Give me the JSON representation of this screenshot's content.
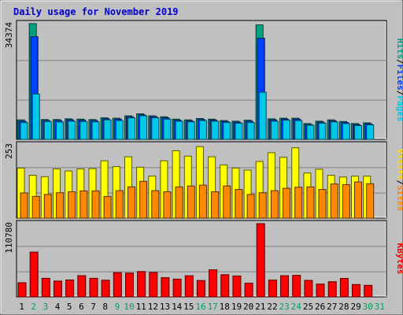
{
  "chart_data": {
    "type": "bar",
    "title": "Daily usage for November 2019",
    "categories": [
      "1",
      "2",
      "3",
      "4",
      "5",
      "6",
      "7",
      "8",
      "9",
      "10",
      "11",
      "12",
      "13",
      "14",
      "15",
      "16",
      "17",
      "18",
      "19",
      "20",
      "21",
      "22",
      "23",
      "24",
      "25",
      "26",
      "27",
      "28",
      "29",
      "30",
      "31"
    ],
    "weekend_days": [
      "2",
      "3",
      "9",
      "10",
      "16",
      "17",
      "23",
      "24",
      "30",
      "31"
    ],
    "panels": [
      {
        "id": "hits-files-pages",
        "max_label": "34374",
        "ymax": 34374,
        "legend": [
          {
            "text": "Pages",
            "color": "#00c8e8"
          },
          {
            "text": "/",
            "color": "#000000"
          },
          {
            "text": "Files",
            "color": "#0040ff"
          },
          {
            "text": "/",
            "color": "#000000"
          },
          {
            "text": "Hits",
            "color": "#00a080"
          }
        ],
        "series": [
          {
            "name": "Hits",
            "color": "#00a080",
            "values": [
              5800,
              34374,
              5900,
              5900,
              6100,
              6000,
              5900,
              6400,
              6300,
              7000,
              7600,
              7000,
              6700,
              6000,
              5800,
              6200,
              6000,
              5600,
              5400,
              5700,
              34000,
              6100,
              6300,
              6300,
              4700,
              5400,
              5800,
              5300,
              4700,
              4900,
              null
            ]
          },
          {
            "name": "Files",
            "color": "#0040ff",
            "values": [
              5400,
              30500,
              5600,
              5600,
              5800,
              5700,
              5600,
              6100,
              6000,
              6700,
              7300,
              6700,
              6400,
              5700,
              5500,
              5900,
              5700,
              5300,
              5100,
              5400,
              30000,
              5800,
              6000,
              6000,
              4400,
              5100,
              5500,
              5000,
              4400,
              4600,
              null
            ]
          },
          {
            "name": "Pages",
            "color": "#00c8e8",
            "values": [
              5000,
              13500,
              5300,
              5200,
              5400,
              5300,
              5200,
              5800,
              5600,
              6400,
              7000,
              6400,
              6000,
              5400,
              5200,
              5600,
              5400,
              5000,
              4800,
              5000,
              14000,
              5400,
              5700,
              5600,
              4200,
              4800,
              5200,
              4700,
              4100,
              4300,
              null
            ]
          }
        ]
      },
      {
        "id": "visits-sites",
        "max_label": "253",
        "ymax": 253,
        "legend": [
          {
            "text": "Sites",
            "color": "#ff8800"
          },
          {
            "text": "/",
            "color": "#000000"
          },
          {
            "text": "Visits",
            "color": "#ffd800"
          }
        ],
        "series": [
          {
            "name": "Visits",
            "color": "#ffff00",
            "values": [
              173,
              148,
              143,
              170,
              163,
              170,
              171,
              198,
              178,
              212,
              176,
              145,
              198,
              233,
              214,
              247,
              212,
              184,
              173,
              166,
              196,
              226,
              210,
              243,
              156,
              169,
              148,
              142,
              145,
              145,
              null
            ]
          },
          {
            "name": "Sites",
            "color": "#ff8800",
            "values": [
              87,
              75,
              82,
              88,
              91,
              94,
              94,
              75,
              95,
              108,
              127,
              95,
              91,
              108,
              111,
              114,
              91,
              111,
              99,
              82,
              88,
              95,
              103,
              107,
              108,
              99,
              118,
              116,
              125,
              119,
              null
            ]
          }
        ]
      },
      {
        "id": "kbytes",
        "max_label": "110780",
        "ymax": 110780,
        "legend": [
          {
            "text": "KBytes",
            "color": "#ff0000"
          }
        ],
        "series": [
          {
            "name": "KBytes",
            "color": "#ff0000",
            "values": [
              21500,
              67800,
              28100,
              23900,
              25600,
              32200,
              28100,
              25200,
              36700,
              36000,
              38400,
              37000,
              29100,
              26900,
              32100,
              24800,
              41000,
              33600,
              31700,
              20700,
              110780,
              25400,
              32000,
              32600,
              25000,
              19400,
              23000,
              28000,
              18700,
              17500,
              null
            ]
          }
        ]
      }
    ]
  }
}
